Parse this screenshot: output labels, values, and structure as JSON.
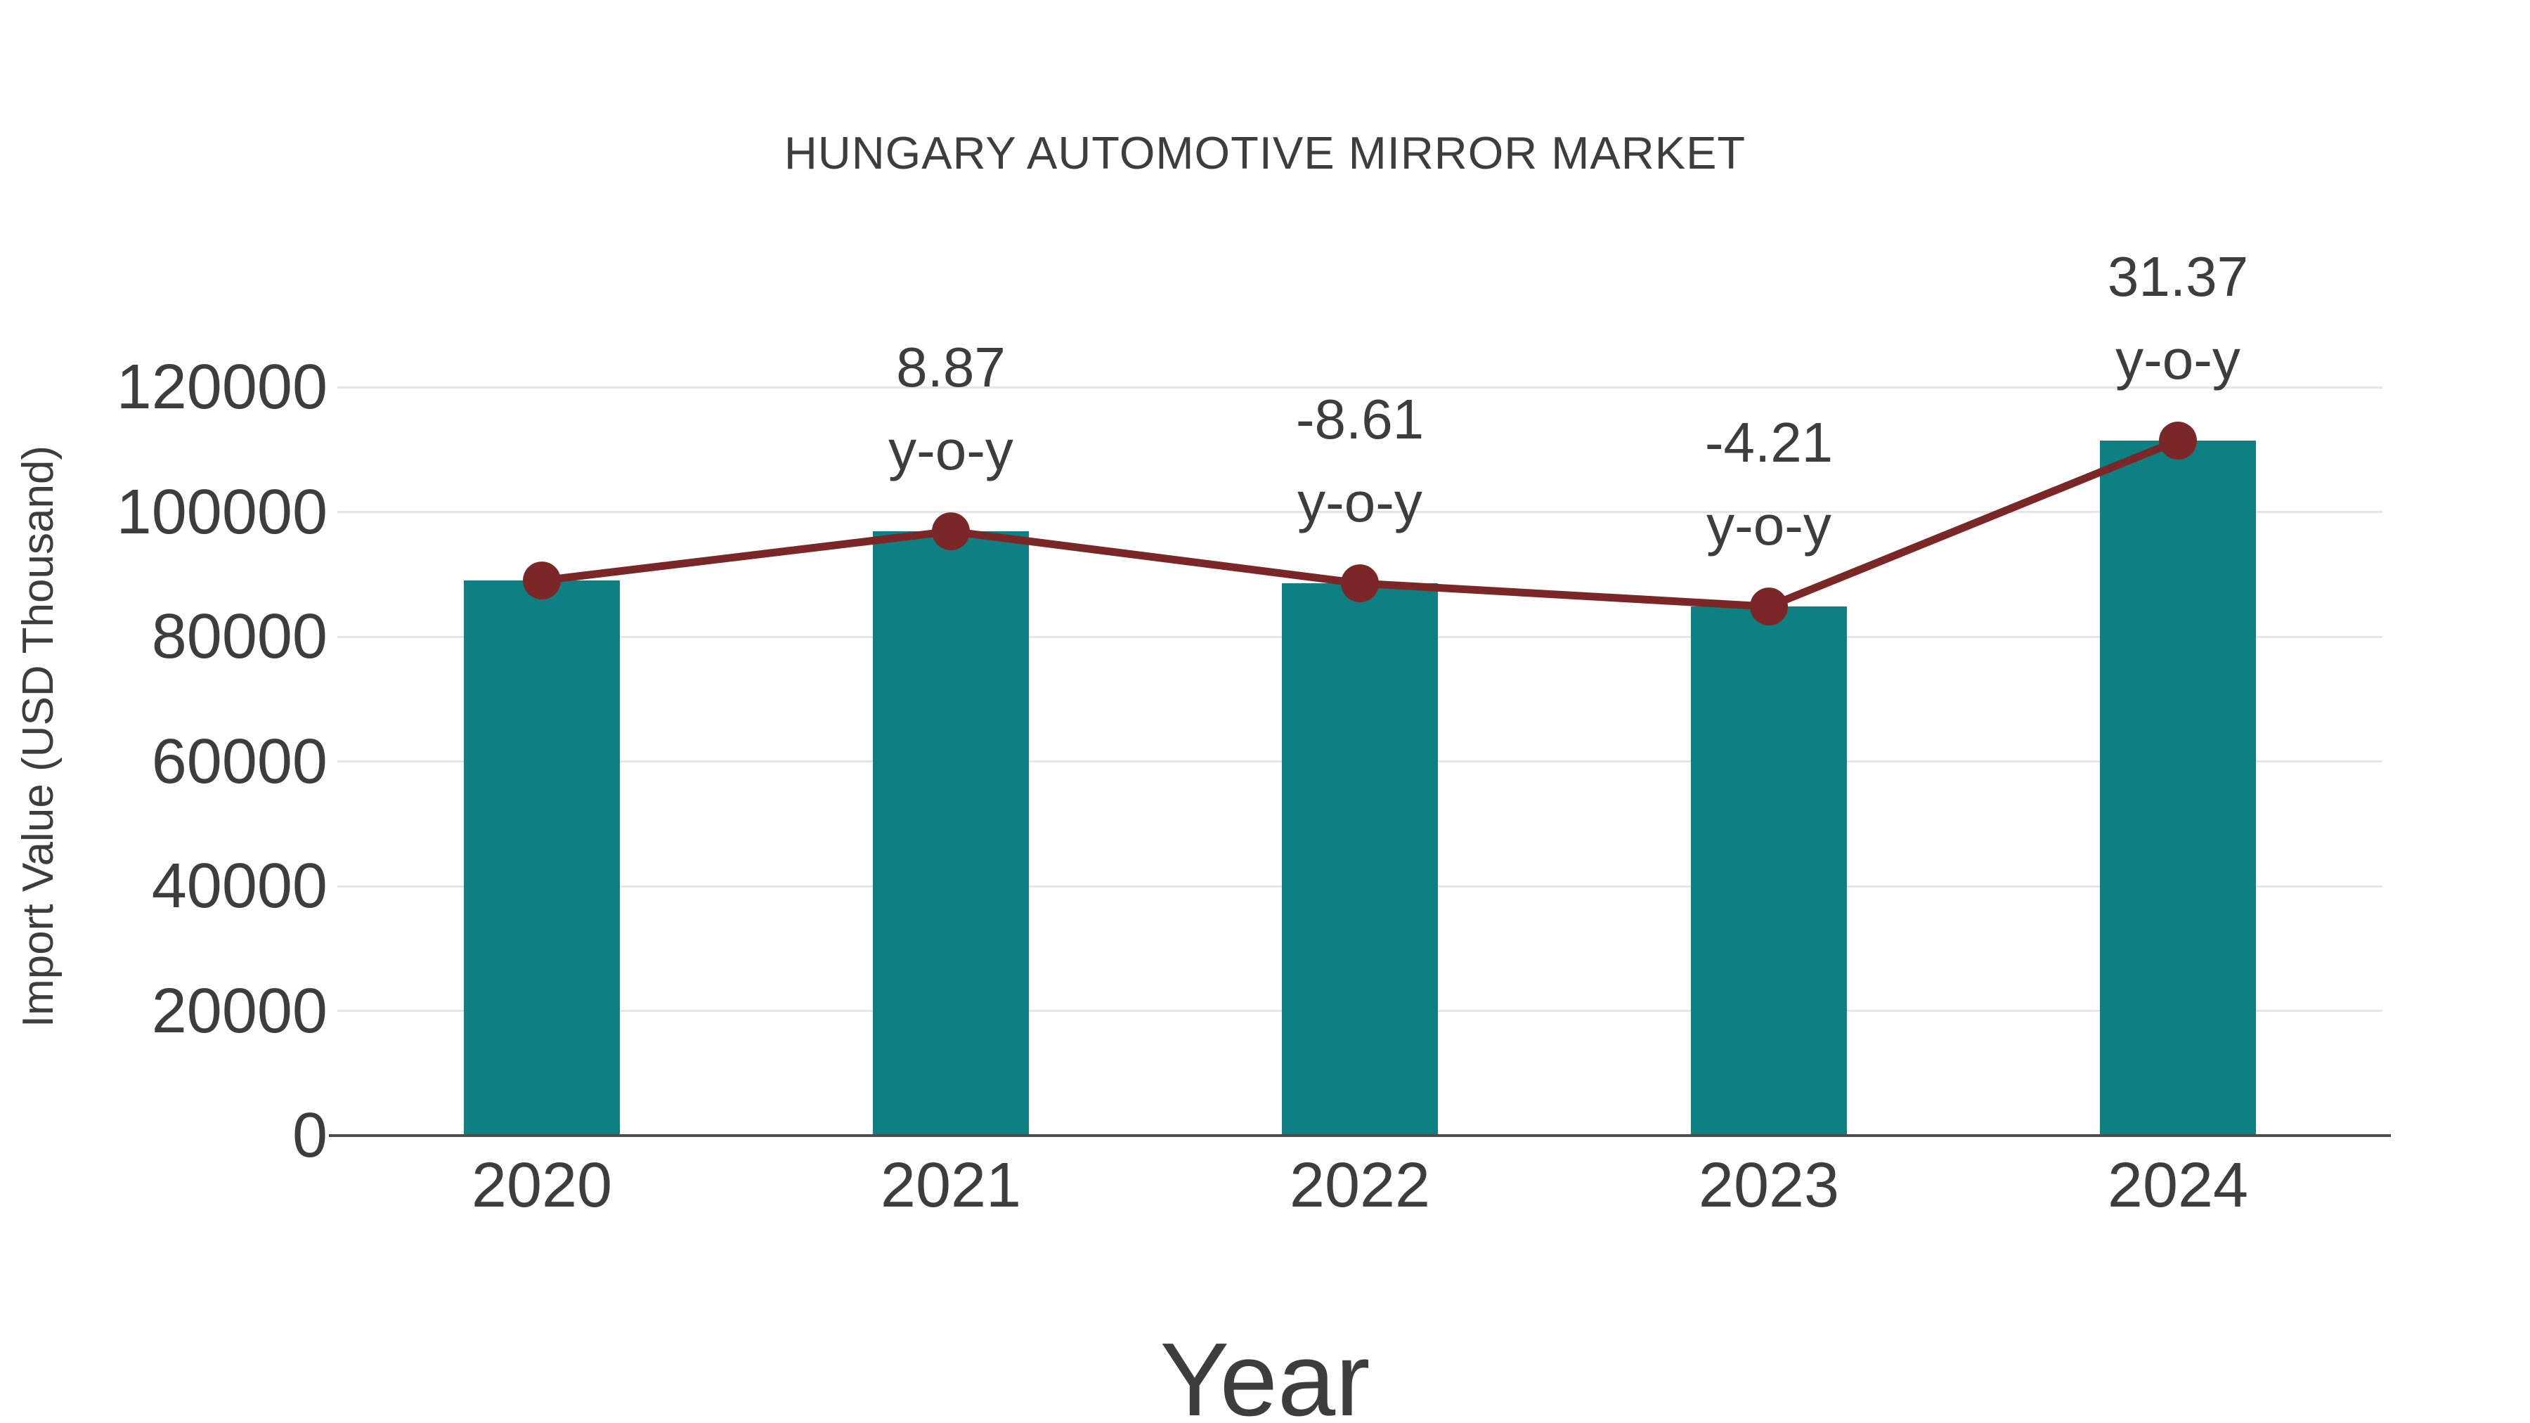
{
  "title": "HUNGARY AUTOMOTIVE MIRROR MARKET",
  "colors": {
    "bar": "#0E8083",
    "line": "#7B2727",
    "marker": "#7B2727",
    "text": "#3D3D3D",
    "grid": "#E6E6E6",
    "axis": "#4C4C4C",
    "background": "#FFFFFF"
  },
  "chart_data": {
    "type": "bar",
    "title": "HUNGARY AUTOMOTIVE MIRROR MARKET",
    "xlabel": "Year",
    "ylabel": "Import Value (USD Thousand)",
    "categories": [
      "2020",
      "2021",
      "2022",
      "2023",
      "2024"
    ],
    "series": [
      {
        "name": "Import Value (USD Thousand)",
        "type": "bar",
        "color": "#0E8083",
        "values": [
          89000,
          96894,
          88552,
          84824,
          111434
        ]
      },
      {
        "name": "y-o-y trend line",
        "type": "line",
        "color": "#7B2727",
        "values": [
          89000,
          96894,
          88552,
          84824,
          111434
        ]
      }
    ],
    "yoy_labels": [
      null,
      "8.87",
      "-8.61",
      "-4.21",
      "31.37"
    ],
    "annotation_suffix": "y-o-y",
    "y_ticks": [
      "0",
      "20000",
      "40000",
      "60000",
      "80000",
      "100000",
      "120000"
    ],
    "ylim": [
      0,
      120000
    ],
    "ytick_step": 20000,
    "grid": true,
    "legend": "none"
  }
}
